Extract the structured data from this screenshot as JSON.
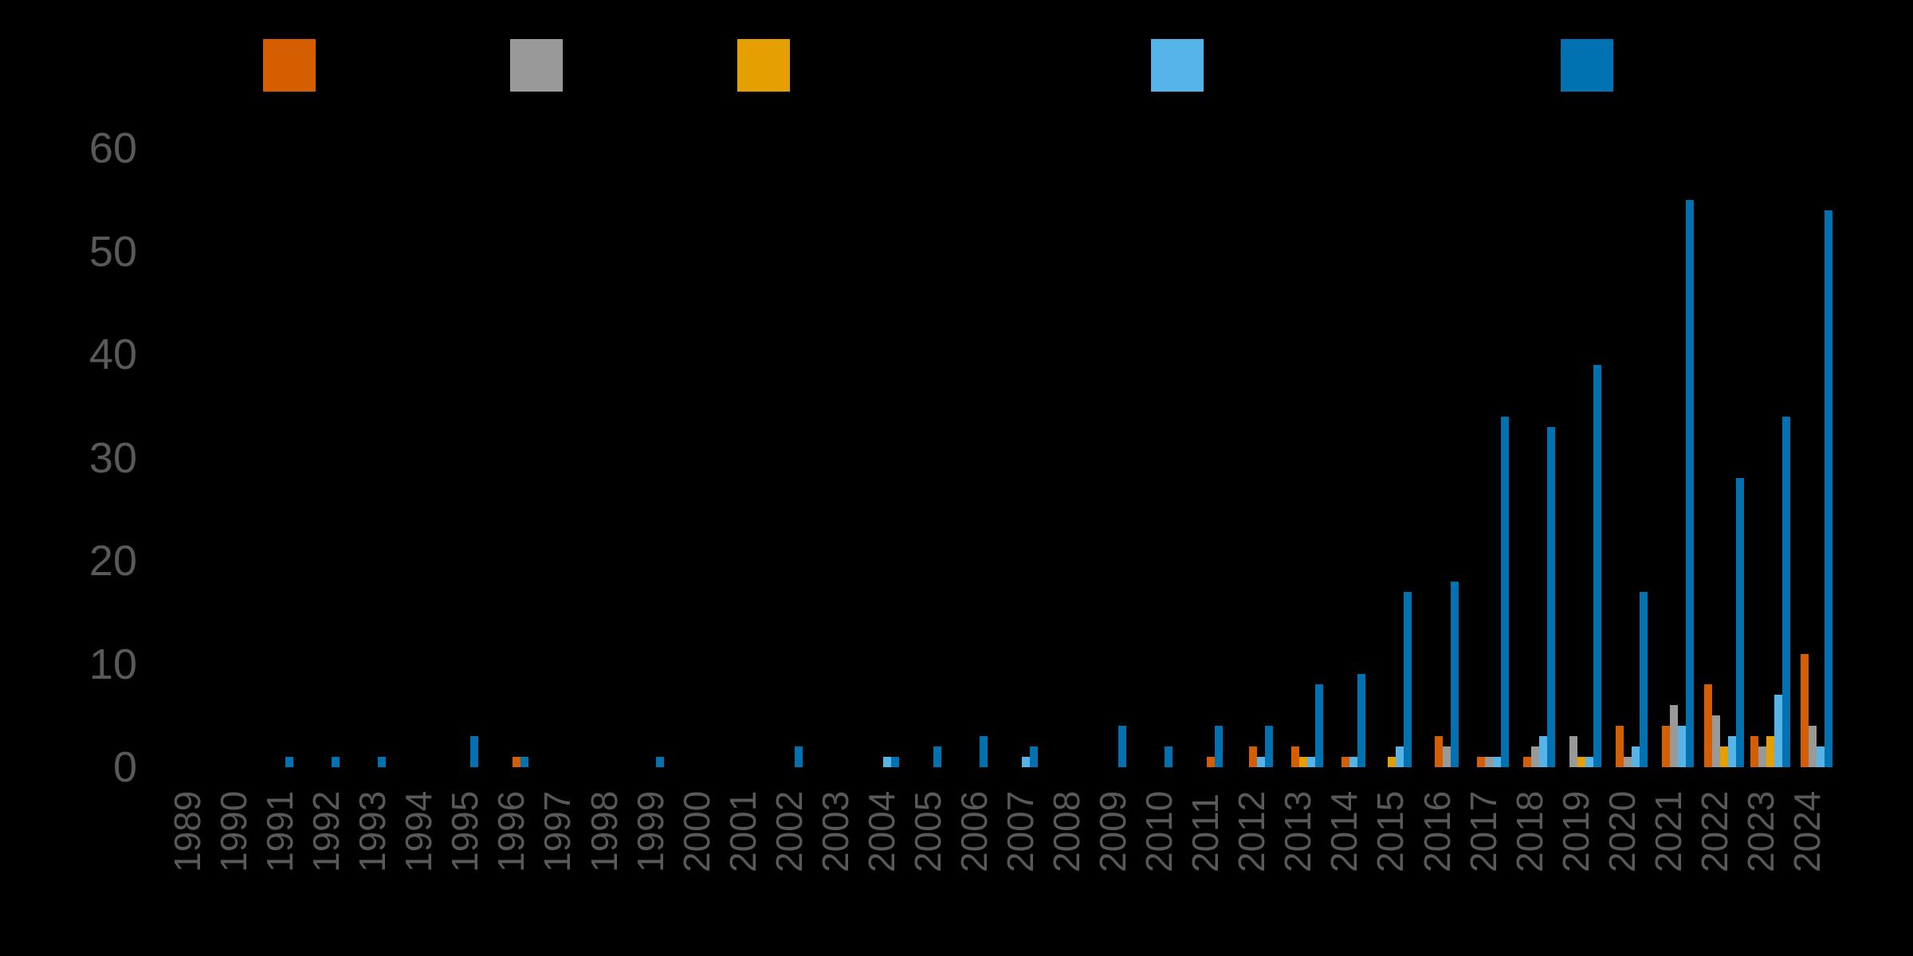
{
  "chart_data": {
    "type": "bar",
    "title": "",
    "xlabel": "",
    "ylabel": "",
    "ylim": [
      0,
      60
    ],
    "yticks": [
      0,
      10,
      20,
      30,
      40,
      50,
      60
    ],
    "grid": false,
    "legend_position": "top",
    "categories": [
      "1989",
      "1990",
      "1991",
      "1992",
      "1993",
      "1994",
      "1995",
      "1996",
      "1997",
      "1998",
      "1999",
      "2000",
      "2001",
      "2002",
      "2003",
      "2004",
      "2005",
      "2006",
      "2007",
      "2008",
      "2009",
      "2010",
      "2011",
      "2012",
      "2013",
      "2014",
      "2015",
      "2016",
      "2017",
      "2018",
      "2019",
      "2020",
      "2021",
      "2022",
      "2023",
      "2024"
    ],
    "series": [
      {
        "name": "",
        "color": "#D55E00",
        "values": [
          0,
          0,
          0,
          0,
          0,
          0,
          0,
          1,
          0,
          0,
          0,
          0,
          0,
          0,
          0,
          0,
          0,
          0,
          0,
          0,
          0,
          0,
          1,
          2,
          2,
          1,
          0,
          3,
          1,
          1,
          0,
          4,
          4,
          8,
          3,
          11
        ]
      },
      {
        "name": "",
        "color": "#999999",
        "values": [
          0,
          0,
          0,
          0,
          0,
          0,
          0,
          0,
          0,
          0,
          0,
          0,
          0,
          0,
          0,
          0,
          0,
          0,
          0,
          0,
          0,
          0,
          0,
          0,
          0,
          0,
          0,
          2,
          1,
          2,
          3,
          1,
          6,
          5,
          2,
          4
        ]
      },
      {
        "name": "",
        "color": "#E69F00",
        "values": [
          0,
          0,
          0,
          0,
          0,
          0,
          0,
          0,
          0,
          0,
          0,
          0,
          0,
          0,
          0,
          0,
          0,
          0,
          0,
          0,
          0,
          0,
          0,
          0,
          1,
          0,
          1,
          0,
          0,
          0,
          1,
          0,
          0,
          2,
          3,
          0
        ]
      },
      {
        "name": "",
        "color": "#56B4E9",
        "values": [
          0,
          0,
          0,
          0,
          0,
          0,
          0,
          0,
          0,
          0,
          0,
          0,
          0,
          0,
          0,
          1,
          0,
          0,
          1,
          0,
          0,
          0,
          0,
          1,
          1,
          1,
          2,
          0,
          1,
          3,
          1,
          2,
          4,
          3,
          7,
          2
        ]
      },
      {
        "name": "",
        "color": "#0072B2",
        "values": [
          0,
          0,
          1,
          1,
          1,
          0,
          3,
          1,
          0,
          0,
          1,
          0,
          0,
          2,
          0,
          1,
          2,
          3,
          2,
          0,
          4,
          2,
          4,
          4,
          8,
          9,
          17,
          18,
          34,
          33,
          39,
          17,
          55,
          28,
          34,
          54
        ]
      }
    ]
  },
  "legend": [
    {
      "label": "",
      "color": "#D55E00"
    },
    {
      "label": "",
      "color": "#999999"
    },
    {
      "label": "",
      "color": "#E69F00"
    },
    {
      "label": "",
      "color": "#56B4E9"
    },
    {
      "label": "",
      "color": "#0072B2"
    }
  ]
}
